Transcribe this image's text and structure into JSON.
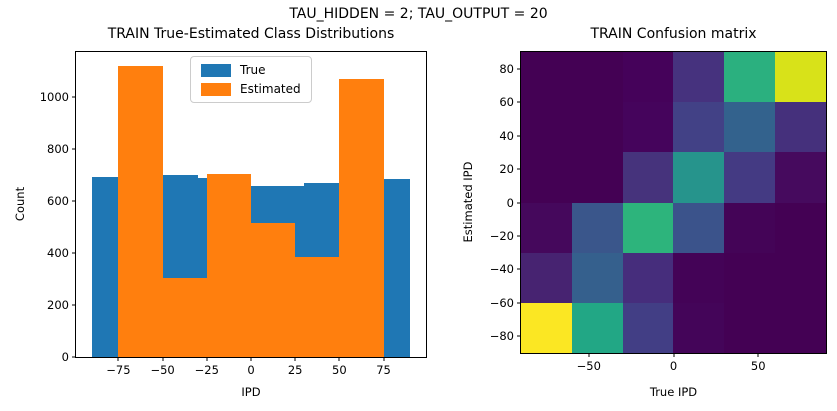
{
  "figure": {
    "suptitle": "TAU_HIDDEN = 2; TAU_OUTPUT = 20",
    "background": "#ffffff"
  },
  "chart_data": [
    {
      "type": "bar",
      "subtype": "overlaid-histograms",
      "title": "TRAIN True-Estimated Class Distributions",
      "xlabel": "IPD",
      "ylabel": "Count",
      "xlim": [
        -99,
        99
      ],
      "ylim": [
        0,
        1175
      ],
      "xticks": [
        -75,
        -50,
        -25,
        0,
        25,
        50,
        75
      ],
      "yticks": [
        0,
        200,
        400,
        600,
        800,
        1000
      ],
      "grid": false,
      "legend_position": "upper left-of-center inside axes",
      "series": [
        {
          "name": "True",
          "color": "#1f77b4",
          "bin_edges": [
            -90,
            -60,
            -30,
            0,
            30,
            60,
            90
          ],
          "values": [
            695,
            700,
            690,
            660,
            670,
            685
          ]
        },
        {
          "name": "Estimated",
          "color": "#ff7f0e",
          "bin_edges": [
            -75,
            -50,
            -25,
            0,
            25,
            50,
            75
          ],
          "values": [
            1122,
            305,
            705,
            515,
            385,
            1072
          ]
        }
      ]
    },
    {
      "type": "heatmap",
      "title": "TRAIN Confusion matrix",
      "xlabel": "True IPD",
      "ylabel": "Estimated IPD",
      "x_range": [
        -90,
        90
      ],
      "y_range": [
        -90,
        90
      ],
      "xticks": [
        -50,
        0,
        50
      ],
      "yticks": [
        80,
        60,
        40,
        20,
        0,
        -20,
        -40,
        -60,
        -80
      ],
      "colormap": "viridis",
      "row_order": "top-to-bottom = Estimated IPD 90 down to -90",
      "col_centers_true_ipd": [
        -75,
        -45,
        -15,
        15,
        45,
        75
      ],
      "row_centers_estimated_ipd": [
        75,
        45,
        15,
        -15,
        -45,
        -75
      ],
      "cell_colors": [
        [
          "#440154",
          "#440154",
          "#45025a",
          "#46327e",
          "#2bb07f",
          "#d8e219"
        ],
        [
          "#440154",
          "#440154",
          "#45045c",
          "#424186",
          "#33628d",
          "#45307c"
        ],
        [
          "#440154",
          "#440154",
          "#46337c",
          "#26948c",
          "#443a83",
          "#460a5e"
        ],
        [
          "#45085c",
          "#3a568b",
          "#2db47c",
          "#3b538b",
          "#440457",
          "#440154"
        ],
        [
          "#472371",
          "#35608d",
          "#462d7c",
          "#440357",
          "#440154",
          "#440154"
        ],
        [
          "#fbe723",
          "#22a785",
          "#423e85",
          "#440559",
          "#440154",
          "#440154"
        ]
      ],
      "values_norm_est": [
        [
          0.0,
          0.0,
          0.01,
          0.14,
          0.65,
          0.92
        ],
        [
          0.0,
          0.0,
          0.02,
          0.2,
          0.32,
          0.14
        ],
        [
          0.0,
          0.0,
          0.15,
          0.53,
          0.18,
          0.04
        ],
        [
          0.03,
          0.28,
          0.66,
          0.27,
          0.01,
          0.0
        ],
        [
          0.09,
          0.31,
          0.13,
          0.01,
          0.0,
          0.0
        ],
        [
          0.98,
          0.6,
          0.19,
          0.02,
          0.0,
          0.0
        ]
      ]
    }
  ]
}
